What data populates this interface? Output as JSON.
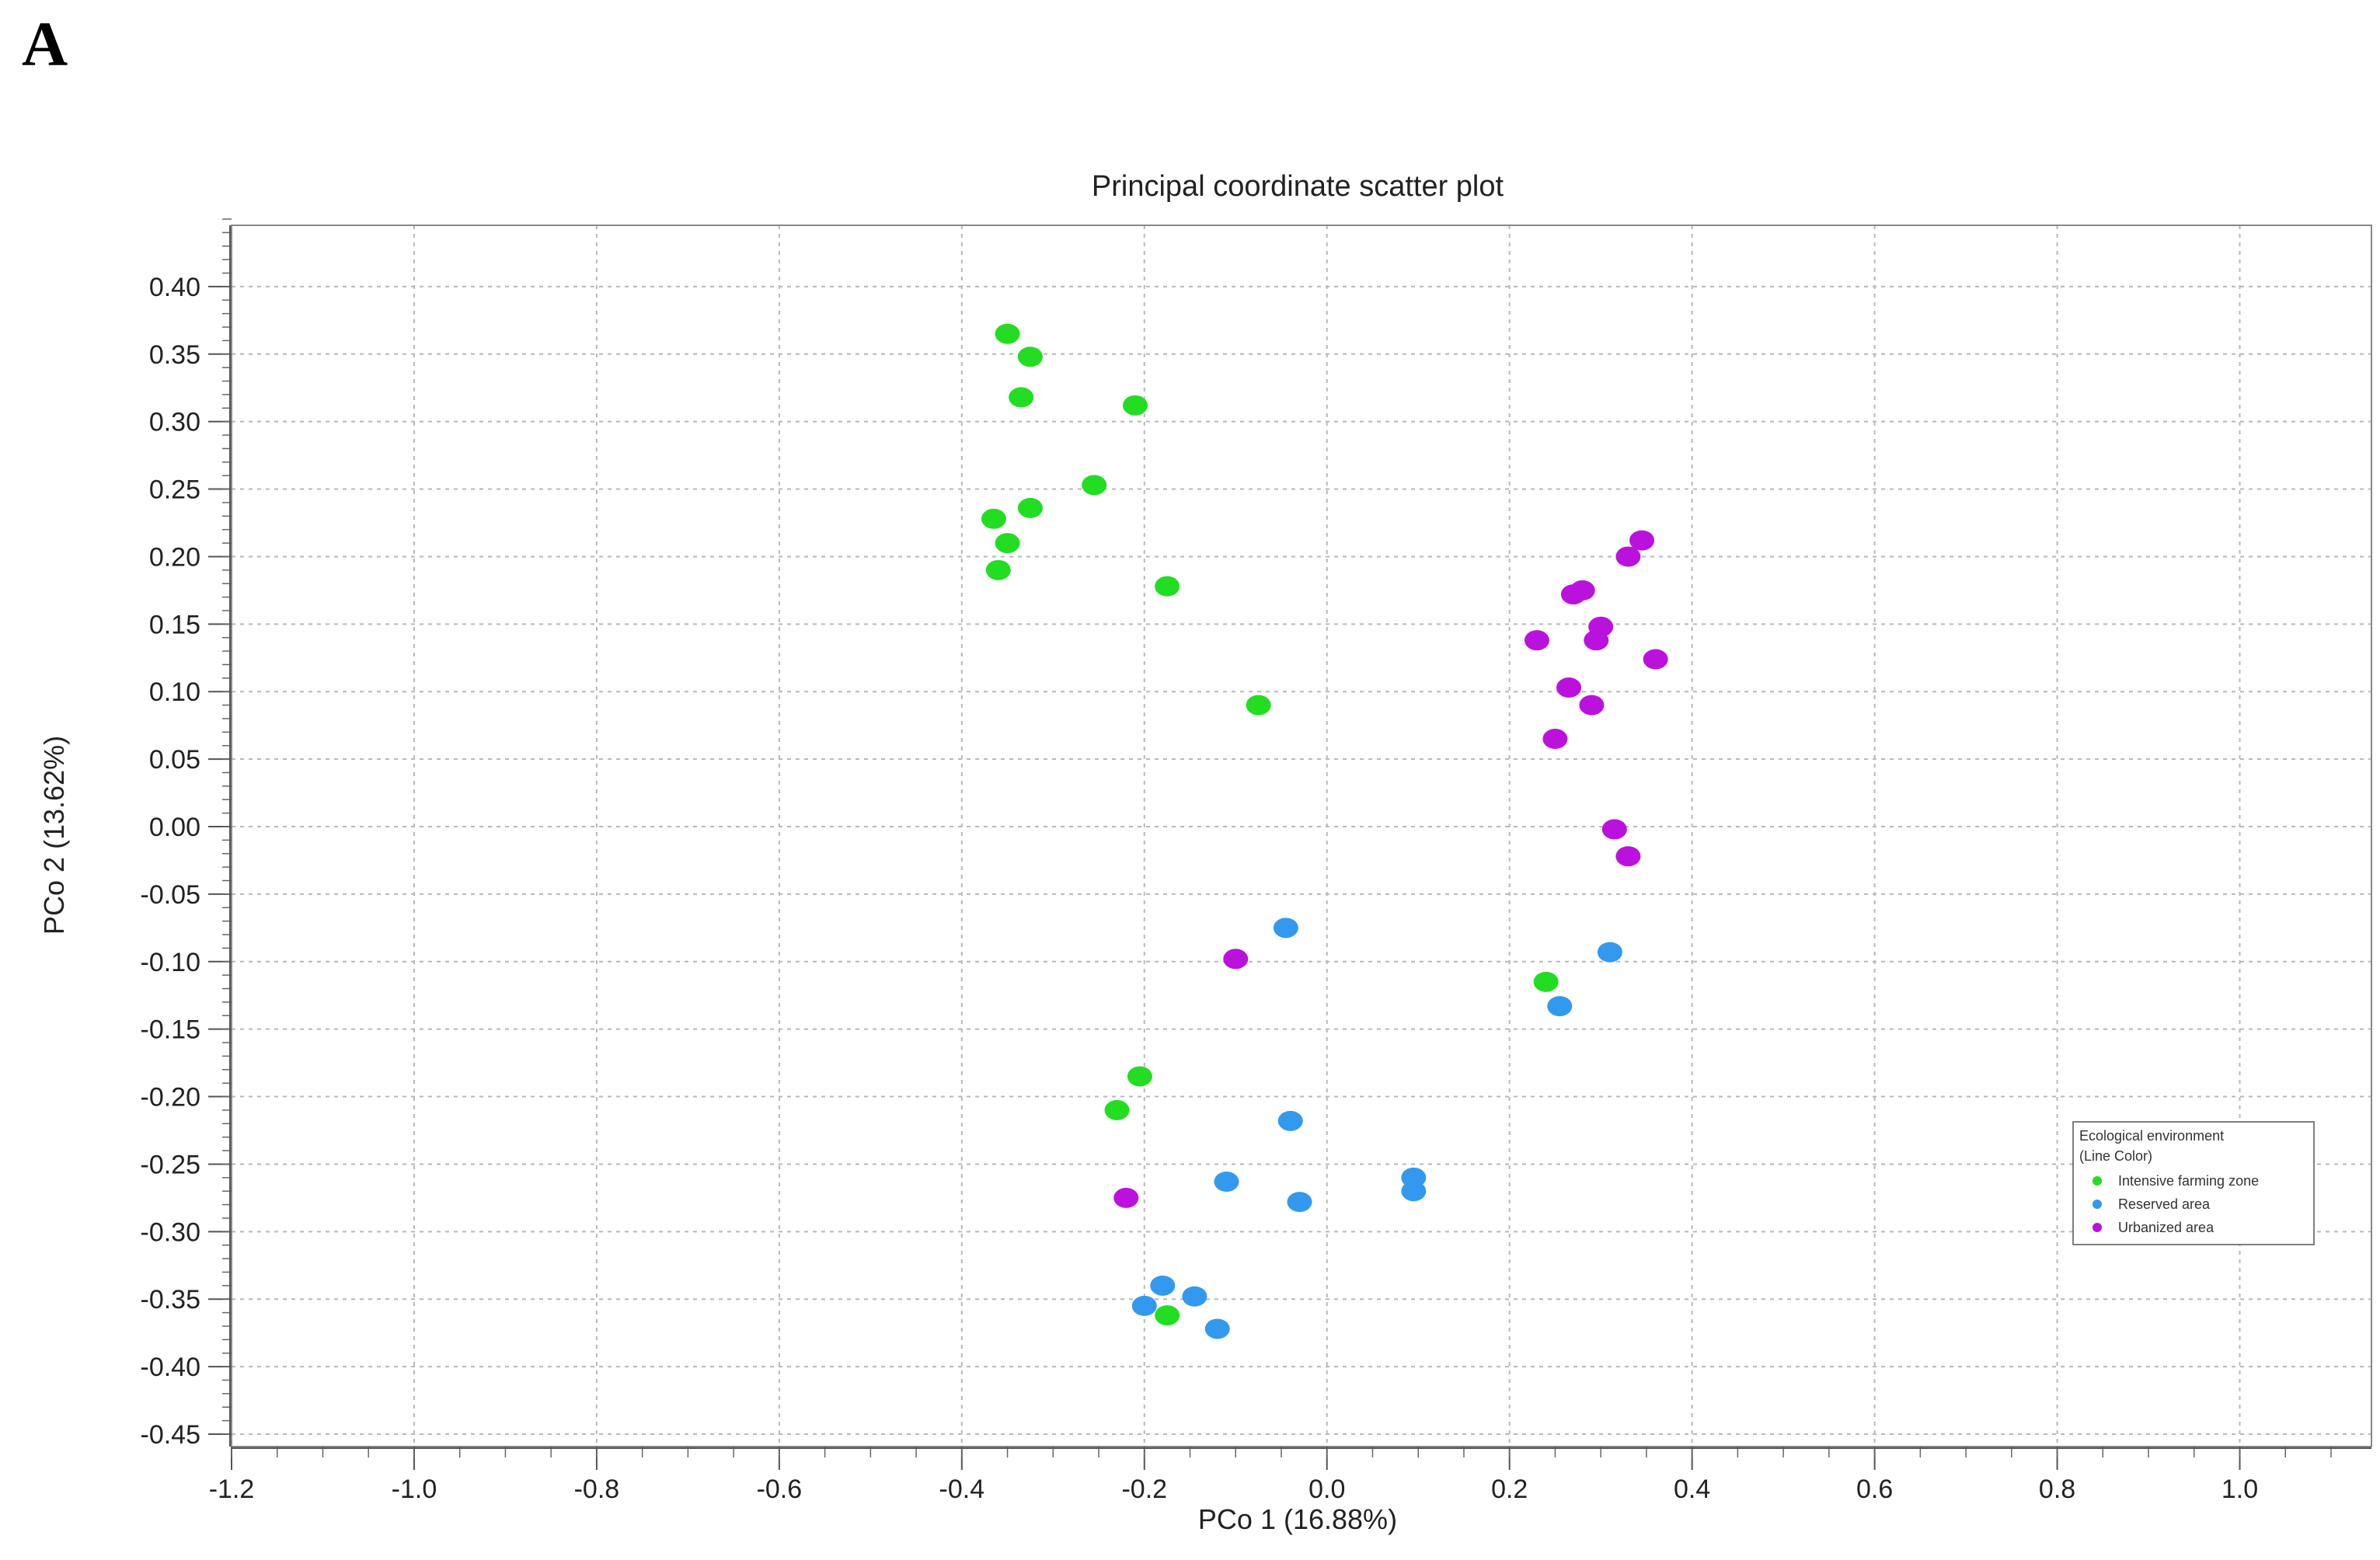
{
  "panel_label": "A",
  "chart_data": {
    "type": "scatter",
    "title": "Principal coordinate scatter plot",
    "xlabel": "PCo 1 (16.88%)",
    "ylabel": "PCo 2 (13.62%)",
    "xlim": [
      -1.2,
      1.2
    ],
    "ylim": [
      -0.45,
      0.45
    ],
    "x_ticks": [
      "-1.2",
      "-1.0",
      "-0.8",
      "-0.6",
      "-0.4",
      "-0.2",
      "0.0",
      "0.2",
      "0.4",
      "0.6",
      "0.8",
      "1.0"
    ],
    "y_ticks": [
      "0.40",
      "0.35",
      "0.30",
      "0.25",
      "0.20",
      "0.15",
      "0.10",
      "0.05",
      "0.00",
      "-0.05",
      "-0.10",
      "-0.15",
      "-0.20",
      "-0.25",
      "-0.30",
      "-0.35",
      "-0.40",
      "-0.45"
    ],
    "grid": true,
    "legend": {
      "title_line1": "Ecological environment",
      "title_line2": "(Line Color)",
      "placement": "bottom-right"
    },
    "series": [
      {
        "name": "Intensive farming zone",
        "color": "#22dd22",
        "points": [
          [
            -0.35,
            0.365
          ],
          [
            -0.325,
            0.348
          ],
          [
            -0.335,
            0.318
          ],
          [
            -0.21,
            0.312
          ],
          [
            -0.255,
            0.253
          ],
          [
            -0.365,
            0.228
          ],
          [
            -0.325,
            0.236
          ],
          [
            -0.35,
            0.21
          ],
          [
            -0.36,
            0.19
          ],
          [
            -0.175,
            0.178
          ],
          [
            -0.075,
            0.09
          ],
          [
            0.24,
            -0.115
          ],
          [
            -0.205,
            -0.185
          ],
          [
            -0.23,
            -0.21
          ],
          [
            -0.175,
            -0.362
          ]
        ]
      },
      {
        "name": "Reserved area",
        "color": "#3399ee",
        "points": [
          [
            -0.045,
            -0.075
          ],
          [
            0.31,
            -0.093
          ],
          [
            0.255,
            -0.133
          ],
          [
            -0.04,
            -0.218
          ],
          [
            -0.11,
            -0.263
          ],
          [
            -0.03,
            -0.278
          ],
          [
            0.095,
            -0.26
          ],
          [
            0.095,
            -0.27
          ],
          [
            -0.18,
            -0.34
          ],
          [
            -0.145,
            -0.348
          ],
          [
            -0.2,
            -0.355
          ],
          [
            -0.12,
            -0.372
          ]
        ]
      },
      {
        "name": "Urbanized area",
        "color": "#bb11dd",
        "points": [
          [
            0.345,
            0.212
          ],
          [
            0.33,
            0.2
          ],
          [
            0.28,
            0.175
          ],
          [
            0.27,
            0.172
          ],
          [
            0.3,
            0.148
          ],
          [
            0.23,
            0.138
          ],
          [
            0.295,
            0.138
          ],
          [
            0.36,
            0.124
          ],
          [
            0.265,
            0.103
          ],
          [
            0.29,
            0.09
          ],
          [
            0.25,
            0.065
          ],
          [
            0.315,
            -0.002
          ],
          [
            0.33,
            -0.022
          ],
          [
            -0.1,
            -0.098
          ],
          [
            -0.22,
            -0.275
          ]
        ]
      }
    ]
  }
}
